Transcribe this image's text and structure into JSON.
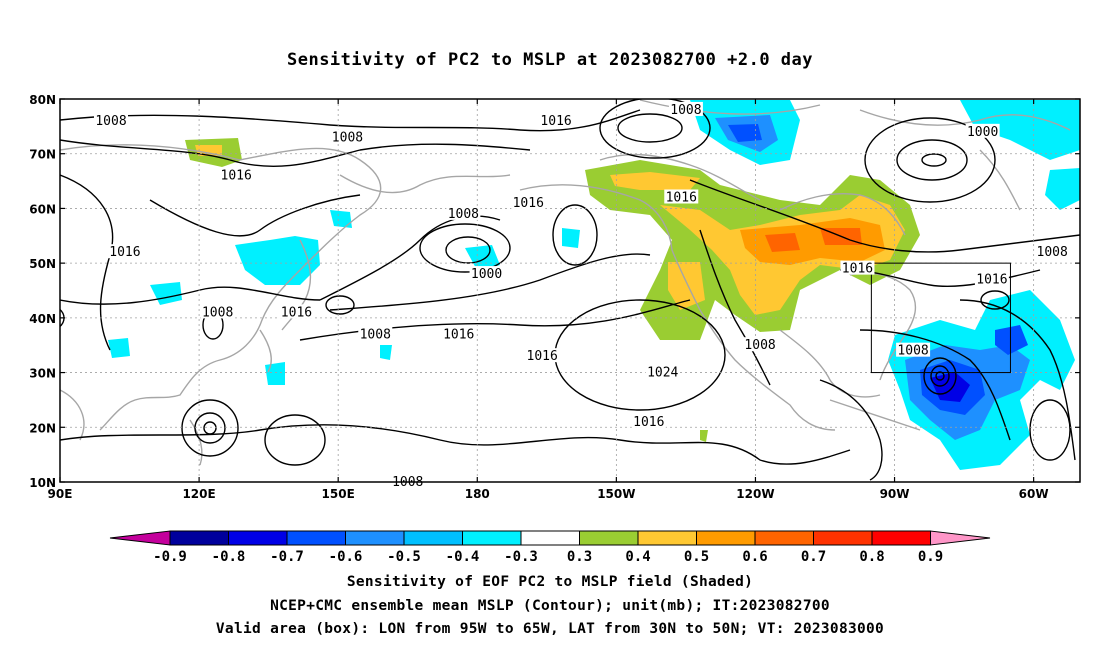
{
  "title": "Sensitivity of PC2 to MSLP at 2023082700 +2.0 day",
  "captions": [
    "Sensitivity of EOF PC2 to MSLP field (Shaded)",
    "NCEP+CMC ensemble mean MSLP (Contour); unit(mb); IT:2023082700",
    "Valid area (box): LON from 95W to 65W, LAT from 30N to 50N; VT: 2023083000"
  ],
  "map": {
    "lon_range": [
      90,
      310
    ],
    "lat_range": [
      10,
      80
    ],
    "lat_ticks": [
      {
        "value": 80,
        "label": "80N"
      },
      {
        "value": 70,
        "label": "70N"
      },
      {
        "value": 60,
        "label": "60N"
      },
      {
        "value": 50,
        "label": "50N"
      },
      {
        "value": 40,
        "label": "40N"
      },
      {
        "value": 30,
        "label": "30N"
      },
      {
        "value": 20,
        "label": "20N"
      },
      {
        "value": 10,
        "label": "10N"
      }
    ],
    "lon_ticks": [
      {
        "value": 90,
        "label": "90E"
      },
      {
        "value": 120,
        "label": "120E"
      },
      {
        "value": 150,
        "label": "150E"
      },
      {
        "value": 180,
        "label": "180"
      },
      {
        "value": 210,
        "label": "150W"
      },
      {
        "value": 240,
        "label": "120W"
      },
      {
        "value": 270,
        "label": "90W"
      },
      {
        "value": 300,
        "label": "60W"
      }
    ],
    "valid_box": {
      "lon": [
        265,
        295
      ],
      "lat": [
        30,
        50
      ]
    },
    "contour_labels": [
      {
        "text": "1008",
        "lon": 101,
        "lat": 76
      },
      {
        "text": "1008",
        "lon": 152,
        "lat": 73
      },
      {
        "text": "1016",
        "lon": 128,
        "lat": 66
      },
      {
        "text": "1016",
        "lon": 104,
        "lat": 52
      },
      {
        "text": "1008",
        "lon": 124,
        "lat": 41
      },
      {
        "text": "1016",
        "lon": 141,
        "lat": 41
      },
      {
        "text": "1008",
        "lon": 158,
        "lat": 37
      },
      {
        "text": "1016",
        "lon": 176,
        "lat": 37
      },
      {
        "text": "1008",
        "lon": 177,
        "lat": 59
      },
      {
        "text": "1000",
        "lon": 182,
        "lat": 48
      },
      {
        "text": "1016",
        "lon": 197,
        "lat": 76
      },
      {
        "text": "1016",
        "lon": 191,
        "lat": 61
      },
      {
        "text": "1016",
        "lon": 224,
        "lat": 62
      },
      {
        "text": "1008",
        "lon": 225,
        "lat": 78
      },
      {
        "text": "1016",
        "lon": 194,
        "lat": 33
      },
      {
        "text": "1024",
        "lon": 220,
        "lat": 30
      },
      {
        "text": "1016",
        "lon": 217,
        "lat": 21
      },
      {
        "text": "1008",
        "lon": 241,
        "lat": 35
      },
      {
        "text": "1016",
        "lon": 262,
        "lat": 49
      },
      {
        "text": "1000",
        "lon": 289,
        "lat": 74
      },
      {
        "text": "1008",
        "lon": 304,
        "lat": 52
      },
      {
        "text": "1016",
        "lon": 291,
        "lat": 47
      },
      {
        "text": "1008",
        "lon": 274,
        "lat": 34
      },
      {
        "text": "1008",
        "lon": 165,
        "lat": 10
      }
    ]
  },
  "colorbar": {
    "labels": [
      "-0.9",
      "-0.8",
      "-0.7",
      "-0.6",
      "-0.5",
      "-0.4",
      "-0.3",
      "0.3",
      "0.4",
      "0.5",
      "0.6",
      "0.7",
      "0.8",
      "0.9"
    ],
    "colors": [
      "#c4009c",
      "#00009c",
      "#0000e6",
      "#0050ff",
      "#1e90ff",
      "#00c0ff",
      "#00f0ff",
      "#ffffff",
      "#9acd32",
      "#ffc832",
      "#ff9b00",
      "#ff6400",
      "#ff3200",
      "#ff0000",
      "#ff96c8"
    ]
  }
}
